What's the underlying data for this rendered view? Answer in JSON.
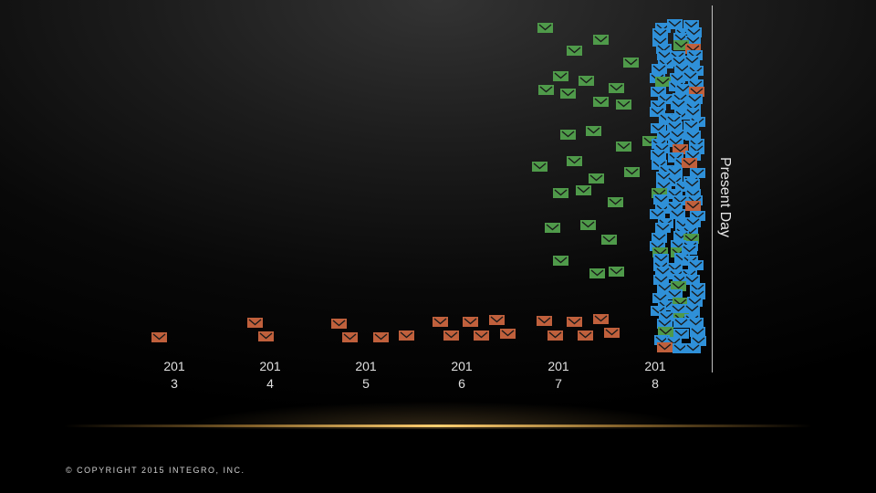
{
  "colors": {
    "background": "#000000",
    "legacy_envelope": "#c0603c",
    "green_envelope": "#4f9a4a",
    "blue_envelope": "#2f90d8",
    "present_line": "#bfbfbf",
    "glow": "#ffcf70"
  },
  "icons": {
    "envelope": "envelope-icon"
  },
  "timeline": {
    "year_labels": [
      "201\n3",
      "201\n4",
      "201\n5",
      "201\n6",
      "201\n7",
      "201\n8"
    ],
    "present_label": "Present Day"
  },
  "footer": {
    "copyright": "© COPYRIGHT 2015 INTEGRO, INC."
  }
}
